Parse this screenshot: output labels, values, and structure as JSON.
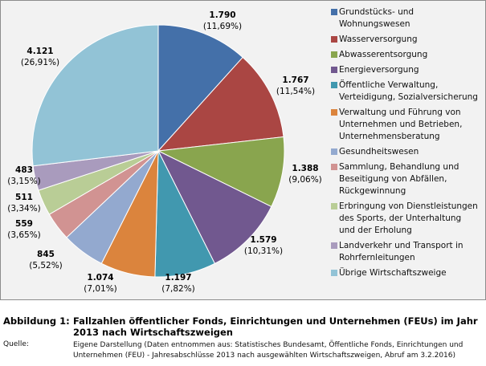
{
  "chart_data": {
    "type": "pie",
    "start": "top",
    "direction": "clockwise",
    "legend_position": "right",
    "slices": [
      {
        "name": "Grundstücks- und Wohnungswesen",
        "value": 1790,
        "value_label": "1.790",
        "percent_label": "(11,69%)",
        "color": "#4470a9"
      },
      {
        "name": "Wasserversorgung",
        "value": 1767,
        "value_label": "1.767",
        "percent_label": "(11,54%)",
        "color": "#aa4643"
      },
      {
        "name": "Abwasserentsorgung",
        "value": 1388,
        "value_label": "1.388",
        "percent_label": "(9,06%)",
        "color": "#89a54e"
      },
      {
        "name": "Energieversorgung",
        "value": 1579,
        "value_label": "1.579",
        "percent_label": "(10,31%)",
        "color": "#71588f"
      },
      {
        "name": "Öffentliche Verwaltung, Verteidigung, Sozialversicherung",
        "value": 1197,
        "value_label": "1.197",
        "percent_label": "(7,82%)",
        "color": "#4198af"
      },
      {
        "name": "Verwaltung und Führung von Unternehmen und Betrieben, Unternehmensberatung",
        "value": 1074,
        "value_label": "1.074",
        "percent_label": "(7,01%)",
        "color": "#db843d"
      },
      {
        "name": "Gesundheitswesen",
        "value": 845,
        "value_label": "845",
        "percent_label": "(5,52%)",
        "color": "#93a9cf"
      },
      {
        "name": "Sammlung, Behandlung und Beseitigung von Abfällen, Rückgewinnung",
        "value": 559,
        "value_label": "559",
        "percent_label": "(3,65%)",
        "color": "#d19392"
      },
      {
        "name": "Erbringung von Dienstleistungen des Sports, der Unterhaltung und der Erholung",
        "value": 511,
        "value_label": "511",
        "percent_label": "(3,34%)",
        "color": "#b9cd96"
      },
      {
        "name": "Landverkehr und Transport in Rohrfernleitungen",
        "value": 483,
        "value_label": "483",
        "percent_label": "(3,15%)",
        "color": "#a99bbd"
      },
      {
        "name": "Übrige Wirtschaftszweige",
        "value": 4121,
        "value_label": "4.121",
        "percent_label": "(26,91%)",
        "color": "#92c3d6"
      }
    ]
  },
  "legend_lines": [
    [
      "Grundstücks- und",
      "Wohnungswesen"
    ],
    [
      "Wasserversorgung"
    ],
    [
      "Abwasserentsorgung"
    ],
    [
      "Energieversorgung"
    ],
    [
      "Öffentliche Verwaltung,",
      "Verteidigung, Sozialversicherung"
    ],
    [
      "Verwaltung und Führung von",
      "Unternehmen und Betrieben,",
      "Unternehmensberatung"
    ],
    [
      "Gesundheitswesen"
    ],
    [
      "Sammlung,  Behandlung und",
      "Beseitigung von Abfällen,",
      "Rückgewinnung"
    ],
    [
      "Erbringung von Dienstleistungen",
      "des Sports, der Unterhaltung",
      "und der Erholung"
    ],
    [
      "Landverkehr und Transport in",
      "Rohrfernleitungen"
    ],
    [
      "Übrige Wirtschaftszweige"
    ]
  ],
  "caption": {
    "label": "Abbildung 1:",
    "text": "Fallzahlen öffentlicher Fonds, Einrichtungen und Unternehmen (FEUs) im Jahr 2013 nach Wirtschaftszweigen"
  },
  "source": {
    "label": "Quelle:",
    "text": "Eigene Darstellung (Daten entnommen aus: Statistisches Bundesamt, Öffentliche Fonds, Einrichtungen und Unternehmen (FEU) - Jahresabschlüsse 2013 nach ausgewählten Wirtschaftszweigen, Abruf am 3.2.2016)"
  }
}
